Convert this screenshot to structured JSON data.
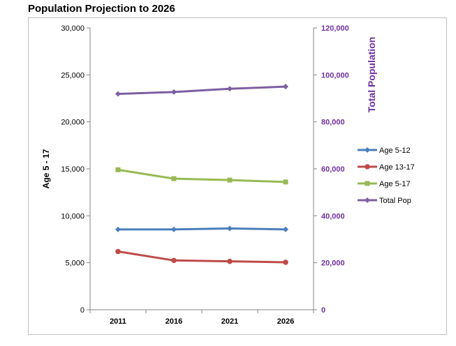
{
  "title": "Population Projection to 2026",
  "chart_data": {
    "type": "line",
    "title": "Population Projection to 2026",
    "categories": [
      "2011",
      "2016",
      "2021",
      "2026"
    ],
    "y_left": {
      "label": "Age 5 - 17",
      "range": [
        0,
        30000
      ],
      "ticks": [
        "0",
        "5,000",
        "10,000",
        "15,000",
        "20,000",
        "25,000",
        "30,000"
      ]
    },
    "y_right": {
      "label": "Total Population",
      "range": [
        0,
        120000
      ],
      "ticks": [
        "0",
        "20,000",
        "40,000",
        "60,000",
        "80,000",
        "100,000",
        "120,000"
      ],
      "color": "#7030a0"
    },
    "series": [
      {
        "name": "Age 5-12",
        "axis": "left",
        "marker": "diamond",
        "color": "#4a7ebb",
        "values": [
          8550,
          8550,
          8650,
          8550
        ]
      },
      {
        "name": "Age 13-17",
        "axis": "left",
        "marker": "circle",
        "color": "#be4b48",
        "values": [
          6200,
          5250,
          5150,
          5050
        ]
      },
      {
        "name": "Age 5-17",
        "axis": "left",
        "marker": "square",
        "color": "#98b954",
        "values": [
          14900,
          13950,
          13800,
          13600
        ]
      },
      {
        "name": "Total Pop",
        "axis": "right",
        "marker": "diamond",
        "color": "#7d5fa0",
        "values": [
          91900,
          92700,
          94100,
          95000
        ]
      }
    ],
    "grid": false,
    "legend": "right"
  }
}
